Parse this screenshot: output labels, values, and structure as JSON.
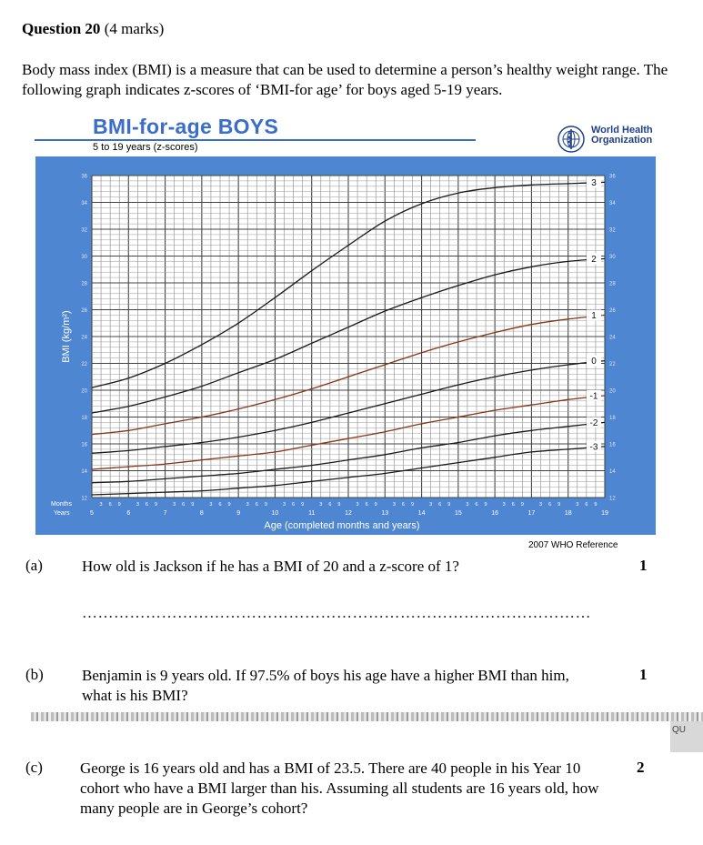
{
  "question": {
    "title": "Question 20",
    "marks": "(4 marks)",
    "intro": "Body mass index (BMI) is a measure that can be used to determine a person’s healthy weight range. The following graph indicates z-scores of ‘BMI-for age’ for boys aged 5-19 years."
  },
  "chart_header": {
    "title": "BMI-for-age  BOYS",
    "subtitle": "5 to 19 years (z-scores)",
    "org_line1": "World Health",
    "org_line2": "Organization",
    "reference": "2007  WHO Reference"
  },
  "chart_data": {
    "type": "line",
    "ylabel": "BMI (kg/m²)",
    "xlabel": "Age (completed months and years)",
    "row_label_months": "Months",
    "row_label_years": "Years",
    "xlim": [
      5,
      19
    ],
    "ylim": [
      12,
      36
    ],
    "grid": true,
    "y_ticks": [
      12,
      14,
      16,
      18,
      20,
      22,
      24,
      26,
      28,
      30,
      32,
      34,
      36
    ],
    "x_year_ticks": [
      "5",
      "6",
      "7",
      "8",
      "9",
      "10",
      "11",
      "12",
      "13",
      "14",
      "15",
      "16",
      "17",
      "18",
      "19"
    ],
    "x_month_ticks": [
      "3",
      "6",
      "9"
    ],
    "x": [
      5,
      6,
      7,
      8,
      9,
      10,
      11,
      12,
      13,
      14,
      15,
      16,
      17,
      18,
      19
    ],
    "series": [
      {
        "name": "3",
        "color": "#1a1a1a",
        "values": [
          20.2,
          20.9,
          22.0,
          23.4,
          25.0,
          26.9,
          28.9,
          30.8,
          32.6,
          33.9,
          34.7,
          35.1,
          35.3,
          35.4,
          35.5
        ]
      },
      {
        "name": "2",
        "color": "#1a1a1a",
        "values": [
          18.3,
          18.8,
          19.5,
          20.3,
          21.3,
          22.3,
          23.5,
          24.7,
          25.9,
          26.9,
          27.8,
          28.6,
          29.2,
          29.6,
          29.8
        ]
      },
      {
        "name": "1",
        "color": "#8a3412",
        "values": [
          16.7,
          17.0,
          17.5,
          18.0,
          18.6,
          19.3,
          20.1,
          21.0,
          21.9,
          22.8,
          23.6,
          24.3,
          24.9,
          25.3,
          25.6
        ]
      },
      {
        "name": "0",
        "color": "#1a1a1a",
        "values": [
          15.3,
          15.5,
          15.8,
          16.1,
          16.5,
          17.0,
          17.6,
          18.3,
          19.0,
          19.7,
          20.4,
          21.0,
          21.5,
          21.9,
          22.2
        ]
      },
      {
        "name": "-1",
        "color": "#8a3412",
        "values": [
          14.1,
          14.3,
          14.5,
          14.8,
          15.1,
          15.4,
          15.9,
          16.4,
          16.9,
          17.5,
          18.0,
          18.5,
          18.9,
          19.3,
          19.6
        ]
      },
      {
        "name": "-2",
        "color": "#1a1a1a",
        "values": [
          13.1,
          13.2,
          13.4,
          13.6,
          13.8,
          14.1,
          14.4,
          14.8,
          15.2,
          15.7,
          16.1,
          16.6,
          17.0,
          17.3,
          17.6
        ]
      },
      {
        "name": "-3",
        "color": "#1a1a1a",
        "values": [
          12.2,
          12.3,
          12.4,
          12.5,
          12.7,
          12.9,
          13.2,
          13.5,
          13.8,
          14.2,
          14.6,
          15.0,
          15.4,
          15.6,
          15.8
        ]
      }
    ]
  },
  "parts": [
    {
      "label": "(a)",
      "text": "How old is Jackson if he has a BMI of 20 and a z-score of 1?",
      "marks": "1"
    },
    {
      "label": "(b)",
      "text": "Benjamin is 9 years old. If 97.5% of boys his age have a higher BMI than him, what is his BMI?",
      "marks": "1"
    },
    {
      "label": "(c)",
      "text": "George is 16 years old and has a BMI of 23.5. There are 40 people in his Year 10 cohort who have a BMI larger than his. Assuming all students are 16 years old, how many people are in George’s cohort?",
      "marks": "2"
    }
  ],
  "answer_line": "……………………………………………………………………………………",
  "page_fragment": "QU"
}
